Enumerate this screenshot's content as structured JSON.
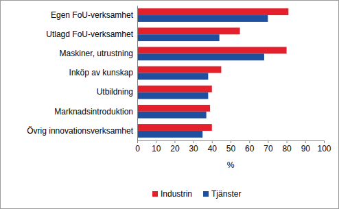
{
  "chart_data": {
    "type": "bar",
    "orientation": "horizontal",
    "categories": [
      "Egen FoU-verksamhet",
      "Utlagd FoU-verksamhet",
      "Maskiner, utrustning",
      "Inköp av kunskap",
      "Utbildning",
      "Marknadsintroduktion",
      "Övrig innovationsverksamhet"
    ],
    "series": [
      {
        "name": "Industrin",
        "color": "#e3202b",
        "values": [
          81,
          55,
          80,
          45,
          40,
          39,
          40
        ]
      },
      {
        "name": "Tjänster",
        "color": "#1f4f9f",
        "values": [
          70,
          44,
          68,
          38,
          38,
          37,
          35
        ]
      }
    ],
    "x_label": "%",
    "xlim": [
      0,
      100
    ],
    "xticks": [
      0,
      10,
      20,
      30,
      40,
      50,
      60,
      70,
      80,
      90,
      100
    ],
    "grid": false,
    "legend": "bottom"
  }
}
